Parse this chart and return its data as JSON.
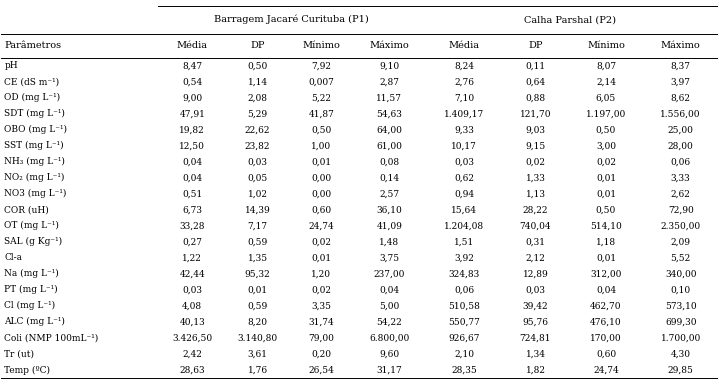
{
  "title_left": "Barragem Jacaré Curituba (P1)",
  "title_right": "Calha Parshal (P2)",
  "col_headers": [
    "Parâmetros",
    "Média",
    "DP",
    "Mínimo",
    "Máximo",
    "Média",
    "DP",
    "Mínimo",
    "Máximo"
  ],
  "rows": [
    [
      "pH",
      "8,47",
      "0,50",
      "7,92",
      "9,10",
      "8,24",
      "0,11",
      "8,07",
      "8,37"
    ],
    [
      "CE (dS m⁻¹)",
      "0,54",
      "1,14",
      "0,007",
      "2,87",
      "2,76",
      "0,64",
      "2,14",
      "3,97"
    ],
    [
      "OD (mg L⁻¹)",
      "9,00",
      "2,08",
      "5,22",
      "11,57",
      "7,10",
      "0,88",
      "6,05",
      "8,62"
    ],
    [
      "SDT (mg L⁻¹)",
      "47,91",
      "5,29",
      "41,87",
      "54,63",
      "1.409,17",
      "121,70",
      "1.197,00",
      "1.556,00"
    ],
    [
      "OBO (mg L⁻¹)",
      "19,82",
      "22,62",
      "0,50",
      "64,00",
      "9,33",
      "9,03",
      "0,50",
      "25,00"
    ],
    [
      "SST (mg L⁻¹)",
      "12,50",
      "23,82",
      "1,00",
      "61,00",
      "10,17",
      "9,15",
      "3,00",
      "28,00"
    ],
    [
      "NH₃ (mg L⁻¹)",
      "0,04",
      "0,03",
      "0,01",
      "0,08",
      "0,03",
      "0,02",
      "0,02",
      "0,06"
    ],
    [
      "NO₂ (mg L⁻¹)",
      "0,04",
      "0,05",
      "0,00",
      "0,14",
      "0,62",
      "1,33",
      "0,01",
      "3,33"
    ],
    [
      "NO3 (mg L⁻¹)",
      "0,51",
      "1,02",
      "0,00",
      "2,57",
      "0,94",
      "1,13",
      "0,01",
      "2,62"
    ],
    [
      "COR (uH)",
      "6,73",
      "14,39",
      "0,60",
      "36,10",
      "15,64",
      "28,22",
      "0,50",
      "72,90"
    ],
    [
      "OT (mg L⁻¹)",
      "33,28",
      "7,17",
      "24,74",
      "41,09",
      "1.204,08",
      "740,04",
      "514,10",
      "2.350,00"
    ],
    [
      "SAL (g Kg⁻¹)",
      "0,27",
      "0,59",
      "0,02",
      "1,48",
      "1,51",
      "0,31",
      "1,18",
      "2,09"
    ],
    [
      "Cl-a",
      "1,22",
      "1,35",
      "0,01",
      "3,75",
      "3,92",
      "2,12",
      "0,01",
      "5,52"
    ],
    [
      "Na (mg L⁻¹)",
      "42,44",
      "95,32",
      "1,20",
      "237,00",
      "324,83",
      "12,89",
      "312,00",
      "340,00"
    ],
    [
      "PT (mg L⁻¹)",
      "0,03",
      "0,01",
      "0,02",
      "0,04",
      "0,06",
      "0,03",
      "0,04",
      "0,10"
    ],
    [
      "Cl (mg L⁻¹)",
      "4,08",
      "0,59",
      "3,35",
      "5,00",
      "510,58",
      "39,42",
      "462,70",
      "573,10"
    ],
    [
      "ALC (mg L⁻¹)",
      "40,13",
      "8,20",
      "31,74",
      "54,22",
      "550,77",
      "95,76",
      "476,10",
      "699,30"
    ],
    [
      "Coli (NMP 100mL⁻¹)",
      "3.426,50",
      "3.140,80",
      "79,00",
      "6.800,00",
      "926,67",
      "724,81",
      "170,00",
      "1.700,00"
    ],
    [
      "Tr (ut)",
      "2,42",
      "3,61",
      "0,20",
      "9,60",
      "2,10",
      "1,34",
      "0,60",
      "4,30"
    ],
    [
      "Temp (ºC)",
      "28,63",
      "1,76",
      "26,54",
      "31,17",
      "28,35",
      "1,82",
      "24,74",
      "29,85"
    ]
  ],
  "bg_color": "#ffffff",
  "font_size": 6.5,
  "header_font_size": 7.0,
  "fig_width": 7.18,
  "fig_height": 3.81,
  "dpi": 100
}
